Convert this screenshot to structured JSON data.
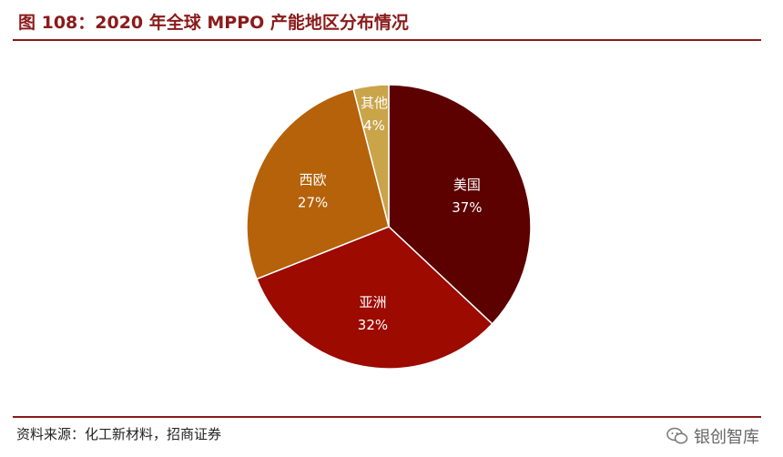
{
  "figure": {
    "title": "图 108：2020 年全球 MPPO 产能地区分布情况",
    "source": "资料来源：化工新材料，招商证券",
    "watermark": "银创智库"
  },
  "chart_data": {
    "type": "pie",
    "title": "图 108：2020 年全球 MPPO 产能地区分布情况",
    "slices": [
      {
        "label": "美国",
        "value": 37,
        "value_label": "37%",
        "color": "#5c0000"
      },
      {
        "label": "亚洲",
        "value": 32,
        "value_label": "32%",
        "color": "#9c0a00"
      },
      {
        "label": "西欧",
        "value": 27,
        "value_label": "27%",
        "color": "#b5620a"
      },
      {
        "label": "其他",
        "value": 4,
        "value_label": "4%",
        "color": "#c9a449"
      }
    ],
    "start": "12 o'clock",
    "direction": "clockwise",
    "legend": "none",
    "labels": "inside"
  }
}
